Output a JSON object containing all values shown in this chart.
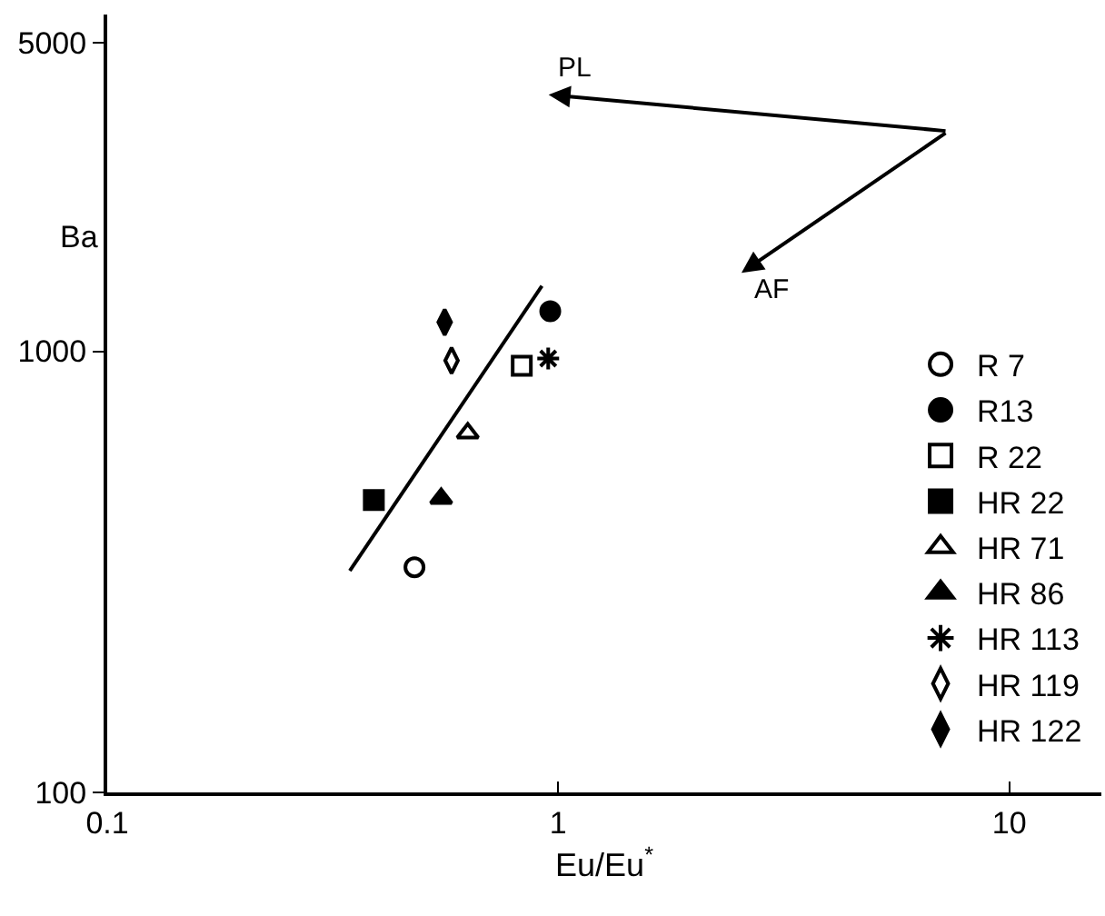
{
  "chart_data": {
    "type": "scatter",
    "xlabel": "Eu/Eu$^{*}$",
    "ylabel": "Ba",
    "log": "xy",
    "legend": "bottom right",
    "xlim": [
      0.1,
      16
    ],
    "xticks": [
      0.1,
      1,
      10
    ],
    "ylim": [
      100,
      5800
    ],
    "yticks": [
      100,
      1000,
      5000
    ],
    "series": [
      {
        "name": "R 7",
        "color": "#ffffff",
        "marker": "circle",
        "x": [
          0.48
        ],
        "values": [
          324
        ]
      },
      {
        "name": "R13",
        "color": "#000000",
        "marker": "circle",
        "x": [
          0.96
        ],
        "values": [
          1233
        ]
      },
      {
        "name": "R 22",
        "color": "#ffffff",
        "marker": "square",
        "x": [
          0.83
        ],
        "values": [
          927
        ]
      },
      {
        "name": "HR 22",
        "color": "#000000",
        "marker": "square",
        "x": [
          0.39
        ],
        "values": [
          460
        ]
      },
      {
        "name": "HR 71",
        "color": "#ffffff",
        "marker": "triangle",
        "x": [
          0.63
        ],
        "values": [
          653
        ]
      },
      {
        "name": "HR 86",
        "color": "#000000",
        "marker": "triangle",
        "x": [
          0.55
        ],
        "values": [
          464
        ]
      },
      {
        "name": "HR 113",
        "color": "#000000",
        "marker": "cross",
        "x": [
          0.95
        ],
        "values": [
          963
        ]
      },
      {
        "name": "HR 119",
        "color": "#ffffff",
        "marker": "diamond",
        "x": [
          0.58
        ],
        "values": [
          953
        ]
      },
      {
        "name": "HR 122",
        "color": "#000000",
        "marker": "diamond",
        "x": [
          0.56
        ],
        "values": [
          1164
        ]
      },
      {
        "type": "line",
        "color": "#000000",
        "marker": "none",
        "x": [
          0.345,
          0.92
        ],
        "values": [
          318,
          1406
        ]
      }
    ],
    "annotations": [
      "PL",
      "AF"
    ]
  }
}
